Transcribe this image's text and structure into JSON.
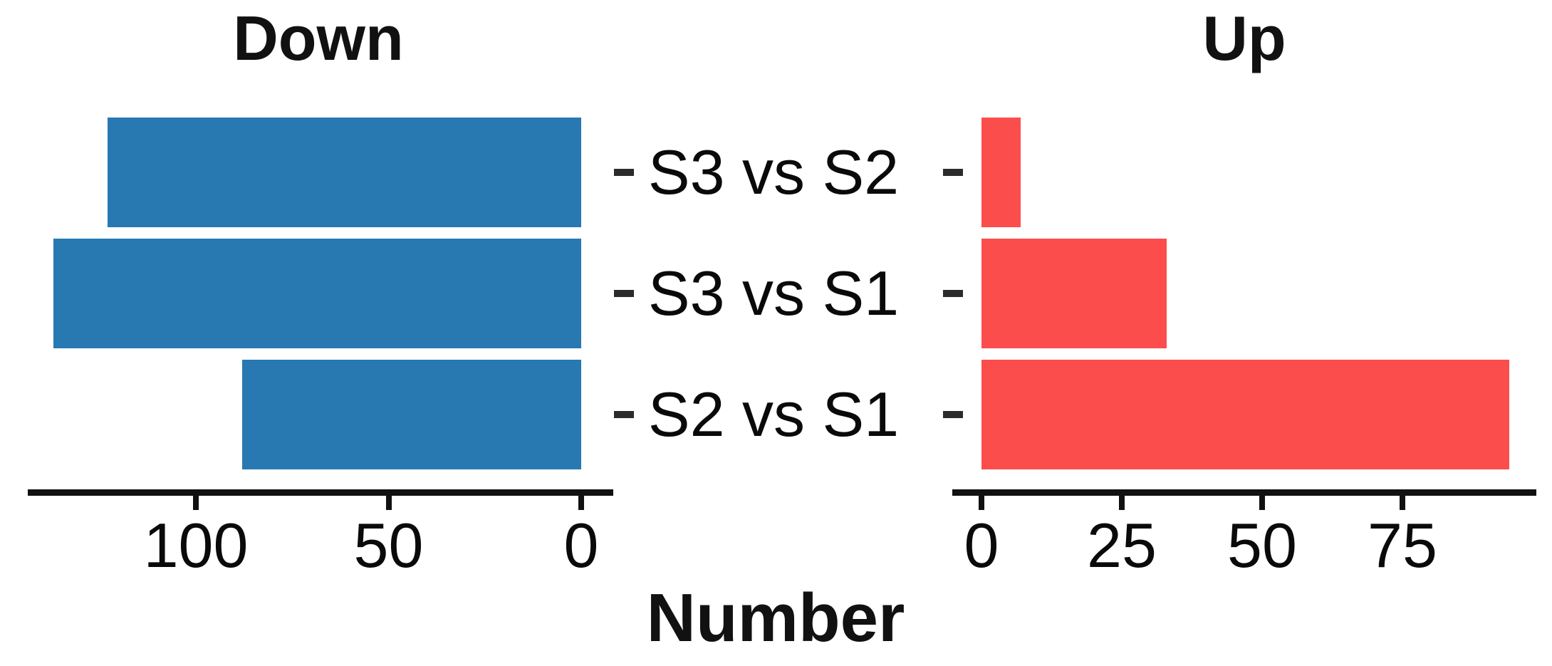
{
  "chart_data": {
    "type": "bar",
    "orientation": "horizontal",
    "title": "",
    "categories": [
      "S3 vs S2",
      "S3 vs S1",
      "S2 vs S1"
    ],
    "series": [
      {
        "name": "Down",
        "panel": "left",
        "direction": "left",
        "color": "#2878B2",
        "values": [
          123,
          137,
          88
        ],
        "axis_ticks": [
          100,
          50,
          0
        ],
        "axis_range": [
          0,
          144
        ]
      },
      {
        "name": "Up",
        "panel": "right",
        "direction": "right",
        "color": "#FC4D4D",
        "values": [
          7,
          33,
          94
        ],
        "axis_ticks": [
          0,
          25,
          50,
          75
        ],
        "axis_range": [
          0,
          99
        ]
      }
    ],
    "xlabel": "Number",
    "ylabel": "",
    "grid": false,
    "legend": "none",
    "axis_color": "#111111",
    "text_color": "#0A0A0A",
    "background": "#FFFFFF"
  }
}
